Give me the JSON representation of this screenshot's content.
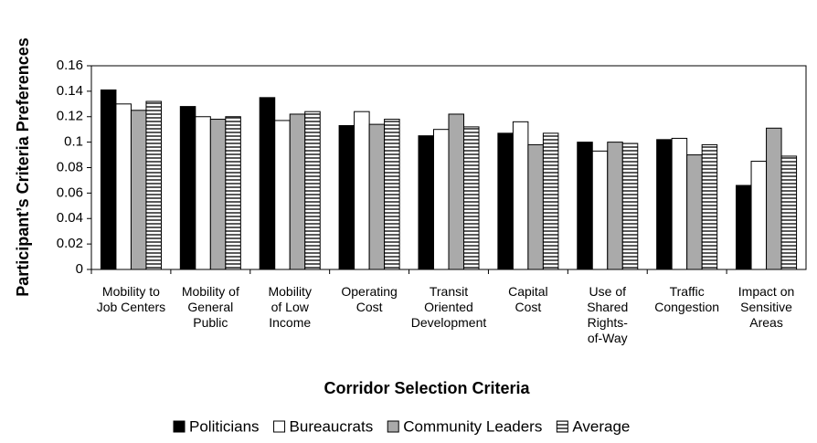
{
  "chart_data": {
    "type": "bar",
    "y_label": "Participant’s Criteria Preferences",
    "x_label": "Corridor Selection Criteria",
    "categories": [
      "Mobility to\nJob Centers",
      "Mobility of\nGeneral\nPublic",
      "Mobility\nof Low\nIncome",
      "Operating\nCost",
      "Transit\nOriented\nDevelopment",
      "Capital\nCost",
      "Use of\nShared\nRights-\nof-Way",
      "Traffic\nCongestion",
      "Impact on\nSensitive\nAreas"
    ],
    "series": [
      {
        "name": "Politicians",
        "color": "#000000",
        "values": [
          0.141,
          0.128,
          0.135,
          0.113,
          0.105,
          0.107,
          0.1,
          0.102,
          0.066
        ]
      },
      {
        "name": "Bureaucrats",
        "color": "#ffffff",
        "values": [
          0.13,
          0.12,
          0.117,
          0.124,
          0.11,
          0.116,
          0.093,
          0.103,
          0.085
        ]
      },
      {
        "name": "Community Leaders",
        "color": "#aaaaaa",
        "values": [
          0.125,
          0.118,
          0.122,
          0.114,
          0.122,
          0.098,
          0.1,
          0.09,
          0.111
        ]
      },
      {
        "name": "Average",
        "color": "#ffffff",
        "pattern": "horizontal-stripes",
        "values": [
          0.132,
          0.12,
          0.124,
          0.118,
          0.112,
          0.107,
          0.099,
          0.098,
          0.089
        ]
      }
    ],
    "ylim": [
      0,
      0.16
    ],
    "yticks": [
      0,
      0.02,
      0.04,
      0.06,
      0.08,
      0.1,
      0.12,
      0.14,
      0.16
    ],
    "grid": false,
    "legend": "bottom"
  }
}
